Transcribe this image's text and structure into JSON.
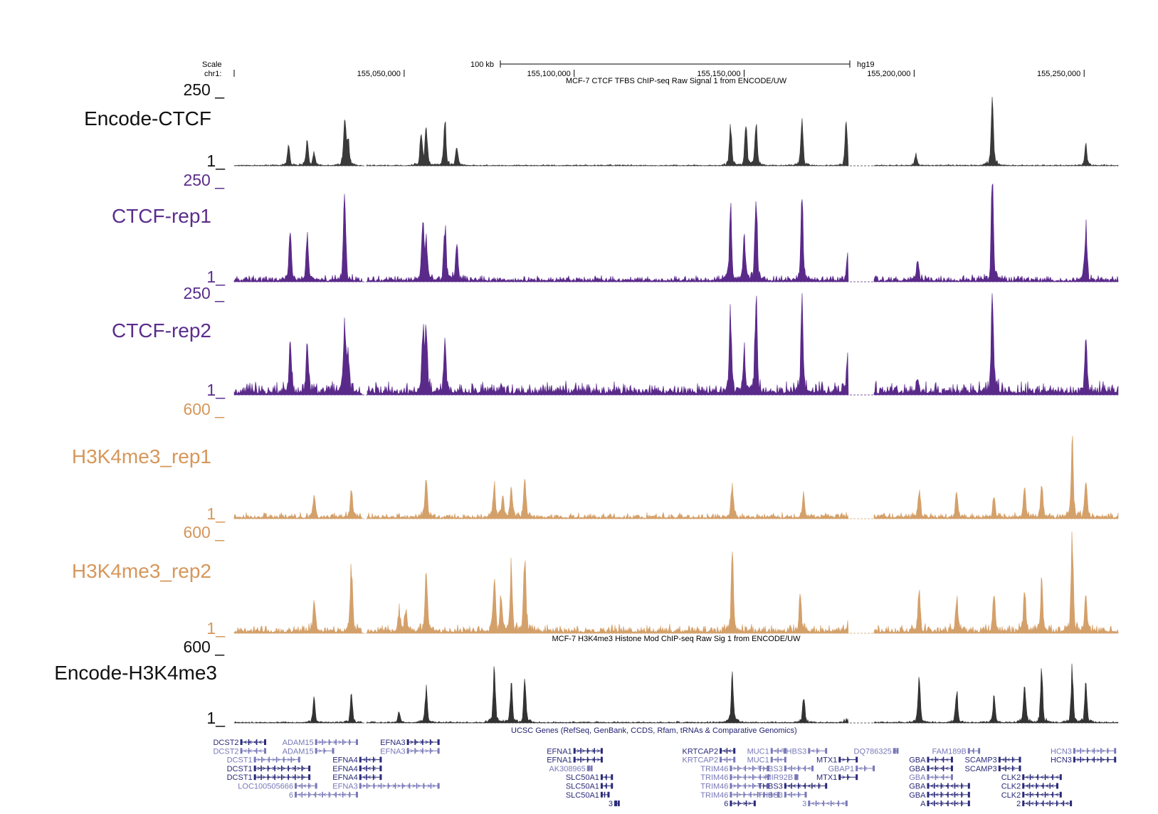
{
  "ruler": {
    "scale_label": "Scale",
    "chrom_label": "chr1:",
    "scale_bar_label": "100 kb",
    "assembly": "hg19",
    "ticks": [
      "155,050,000",
      "155,100,000",
      "155,150,000",
      "155,200,000",
      "155,250,000"
    ]
  },
  "chart_data": {
    "type": "area",
    "x_range": [
      155000000,
      155260000
    ],
    "tracks": [
      {
        "name": "Encode-CTCF",
        "subtitle": "MCF-7 CTCF TFBS ChIP-seq Raw Signal 1 from ENCODE/UW",
        "ymax_label": "250",
        "ymin_label": "1",
        "ylim": [
          1,
          250
        ],
        "color": "#3a3a3a",
        "label_color": "#111111",
        "noise": 0.008,
        "seed": 11,
        "peaks": [
          [
            155016000,
            0.3
          ],
          [
            155021500,
            0.35
          ],
          [
            155023500,
            0.18
          ],
          [
            155032500,
            0.62
          ],
          [
            155033500,
            0.38
          ],
          [
            155055000,
            0.45
          ],
          [
            155056500,
            0.58
          ],
          [
            155062000,
            0.64
          ],
          [
            155065500,
            0.25
          ],
          [
            155146000,
            0.55
          ],
          [
            155150500,
            0.58
          ],
          [
            155153500,
            0.6
          ],
          [
            155167000,
            0.62
          ],
          [
            155180000,
            0.64
          ],
          [
            155200500,
            0.16
          ],
          [
            155223000,
            0.89
          ],
          [
            155250500,
            0.28
          ]
        ]
      },
      {
        "name": "CTCF-rep1",
        "ymax_label": "250",
        "ymin_label": "1",
        "ylim": [
          1,
          250
        ],
        "color": "#5a2a8a",
        "label_color": "#5b2d8c",
        "noise": 0.03,
        "seed": 23,
        "peaks": [
          [
            155016500,
            0.55
          ],
          [
            155021500,
            0.47
          ],
          [
            155032500,
            0.84
          ],
          [
            155055500,
            0.58
          ],
          [
            155056500,
            0.4
          ],
          [
            155062000,
            0.57
          ],
          [
            155065500,
            0.38
          ],
          [
            155146000,
            0.75
          ],
          [
            155150000,
            0.47
          ],
          [
            155153500,
            0.92
          ],
          [
            155167000,
            0.83
          ],
          [
            155180500,
            0.3
          ],
          [
            155201000,
            0.2
          ],
          [
            155223000,
            1.0
          ],
          [
            155250500,
            0.56
          ]
        ]
      },
      {
        "name": "CTCF-rep2",
        "ymax_label": "250",
        "ymin_label": "1",
        "ylim": [
          1,
          250
        ],
        "color": "#5a2a8a",
        "label_color": "#5b2d8c",
        "noise": 0.06,
        "seed": 37,
        "peaks": [
          [
            155016500,
            0.54
          ],
          [
            155021500,
            0.55
          ],
          [
            155032500,
            0.73
          ],
          [
            155033500,
            0.35
          ],
          [
            155055500,
            0.55
          ],
          [
            155056500,
            0.7
          ],
          [
            155062000,
            0.45
          ],
          [
            155146000,
            0.85
          ],
          [
            155150000,
            0.4
          ],
          [
            155153500,
            0.97
          ],
          [
            155167000,
            0.98
          ],
          [
            155180500,
            0.45
          ],
          [
            155201000,
            0.15
          ],
          [
            155223000,
            1.0
          ],
          [
            155250500,
            0.56
          ]
        ]
      },
      {
        "name": "H3K4me3_rep1",
        "ymax_label": "600",
        "ymin_label": "1",
        "ylim": [
          1,
          600
        ],
        "color": "#d4a06a",
        "label_color": "#d6975a",
        "noise": 0.025,
        "seed": 41,
        "peaks": [
          [
            155023500,
            0.22
          ],
          [
            155034500,
            0.28
          ],
          [
            155056500,
            0.4
          ],
          [
            155076500,
            0.32
          ],
          [
            155079000,
            0.22
          ],
          [
            155081500,
            0.26
          ],
          [
            155085500,
            0.38
          ],
          [
            155146500,
            0.33
          ],
          [
            155167500,
            0.22
          ],
          [
            155181500,
            0.33
          ],
          [
            155201500,
            0.26
          ],
          [
            155212500,
            0.26
          ],
          [
            155223500,
            0.2
          ],
          [
            155232500,
            0.28
          ],
          [
            155237500,
            0.33
          ],
          [
            155246500,
            0.7
          ],
          [
            155250500,
            0.38
          ]
        ]
      },
      {
        "name": "H3K4me3_rep2",
        "ymax_label": "600",
        "ymin_label": "1",
        "ylim": [
          1,
          600
        ],
        "color": "#d4a06a",
        "label_color": "#d6975a",
        "noise": 0.04,
        "seed": 53,
        "peaks": [
          [
            155023500,
            0.3
          ],
          [
            155034500,
            0.7
          ],
          [
            155048500,
            0.2
          ],
          [
            155050500,
            0.22
          ],
          [
            155056500,
            0.65
          ],
          [
            155076500,
            0.6
          ],
          [
            155078500,
            0.35
          ],
          [
            155081500,
            0.65
          ],
          [
            155085500,
            0.82
          ],
          [
            155146500,
            0.8
          ],
          [
            155166500,
            0.38
          ],
          [
            155181500,
            0.67
          ],
          [
            155201500,
            0.4
          ],
          [
            155212500,
            0.36
          ],
          [
            155223500,
            0.4
          ],
          [
            155232500,
            0.43
          ],
          [
            155237500,
            0.52
          ],
          [
            155246500,
            1.0
          ],
          [
            155250500,
            0.4
          ]
        ]
      },
      {
        "name": "Encode-H3K4me3",
        "subtitle": "MCF-7 H3K4me3 Histone Mod ChIP-seq Raw Sig 1 from ENCODE/UW",
        "ymax_label": "600",
        "ymin_label": "1",
        "ylim": [
          1,
          600
        ],
        "color": "#333333",
        "label_color": "#111111",
        "noise": 0.01,
        "seed": 67,
        "peaks": [
          [
            155023500,
            0.32
          ],
          [
            155034500,
            0.4
          ],
          [
            155048500,
            0.15
          ],
          [
            155056500,
            0.5
          ],
          [
            155076500,
            0.7
          ],
          [
            155081500,
            0.5
          ],
          [
            155085500,
            0.6
          ],
          [
            155146500,
            0.7
          ],
          [
            155167500,
            0.35
          ],
          [
            155181500,
            0.95
          ],
          [
            155201500,
            0.6
          ],
          [
            155212500,
            0.45
          ],
          [
            155223500,
            0.35
          ],
          [
            155232500,
            0.55
          ],
          [
            155237500,
            0.7
          ],
          [
            155246500,
            0.75
          ],
          [
            155250500,
            0.55
          ]
        ]
      }
    ]
  },
  "genes_title": "UCSC Genes (RefSeq, GenBank, CCDS, Rfam, tRNAs & Comparative Genomics)",
  "genes": [
    {
      "name": "DCST2",
      "row": 0,
      "start": 155002000,
      "end": 155009000,
      "dir": "-",
      "color": "#2a2a7a",
      "side": "left"
    },
    {
      "name": "DCST2",
      "row": 1,
      "start": 155002000,
      "end": 155009000,
      "dir": "-",
      "color": "#7878b8",
      "side": "left"
    },
    {
      "name": "ADAM15",
      "row": 0,
      "start": 155024000,
      "end": 155036000,
      "dir": "+",
      "color": "#7878b8",
      "side": "left"
    },
    {
      "name": "ADAM15",
      "row": 1,
      "start": 155024000,
      "end": 155029000,
      "dir": "+",
      "color": "#7878b8",
      "side": "left"
    },
    {
      "name": "EFNA3",
      "row": 0,
      "start": 155051000,
      "end": 155060000,
      "dir": "+",
      "color": "#2a2a7a",
      "side": "left"
    },
    {
      "name": "EFNA3",
      "row": 1,
      "start": 155051000,
      "end": 155060000,
      "dir": "+",
      "color": "#7878b8",
      "side": "left"
    },
    {
      "name": "DCST1",
      "row": 2,
      "start": 155006000,
      "end": 155019000,
      "dir": "+",
      "color": "#7878b8",
      "side": "left"
    },
    {
      "name": "DCST1",
      "row": 3,
      "start": 155006000,
      "end": 155022000,
      "dir": "+",
      "color": "#2a2a7a",
      "side": "left"
    },
    {
      "name": "DCST1",
      "row": 4,
      "start": 155006000,
      "end": 155022000,
      "dir": "+",
      "color": "#2a2a7a",
      "side": "left"
    },
    {
      "name": "LOC100505666",
      "row": 5,
      "start": 155018000,
      "end": 155024000,
      "dir": "-",
      "color": "#7878b8",
      "side": "left"
    },
    {
      "name": "6",
      "row": 6,
      "start": 155018000,
      "end": 155036000,
      "dir": "-",
      "color": "#7878b8",
      "side": "left"
    },
    {
      "name": "EFNA4",
      "row": 2,
      "start": 155037000,
      "end": 155043000,
      "dir": "-",
      "color": "#2a2a7a",
      "side": "left"
    },
    {
      "name": "EFNA4",
      "row": 3,
      "start": 155037000,
      "end": 155043000,
      "dir": "-",
      "color": "#2a2a7a",
      "side": "left"
    },
    {
      "name": "EFNA4",
      "row": 4,
      "start": 155037000,
      "end": 155043000,
      "dir": "-",
      "color": "#2a2a7a",
      "side": "left"
    },
    {
      "name": "EFNA3",
      "row": 5,
      "start": 155037000,
      "end": 155060000,
      "dir": "+",
      "color": "#7878b8",
      "side": "left"
    },
    {
      "name": "EFNA1",
      "row": 1,
      "start": 155100000,
      "end": 155108000,
      "dir": "+",
      "color": "#2a2a7a",
      "side": "left"
    },
    {
      "name": "EFNA1",
      "row": 2,
      "start": 155100000,
      "end": 155108000,
      "dir": "+",
      "color": "#2a2a7a",
      "side": "left"
    },
    {
      "name": "AK308965",
      "row": 3,
      "start": 155104000,
      "end": 155105000,
      "dir": "+",
      "color": "#7878b8",
      "side": "left"
    },
    {
      "name": "SLC50A1",
      "row": 4,
      "start": 155108000,
      "end": 155111000,
      "dir": "-",
      "color": "#2a2a7a",
      "side": "left"
    },
    {
      "name": "SLC50A1",
      "row": 5,
      "start": 155108000,
      "end": 155111000,
      "dir": "-",
      "color": "#2a2a7a",
      "side": "left"
    },
    {
      "name": "SLC50A1",
      "row": 6,
      "start": 155108000,
      "end": 155110000,
      "dir": "-",
      "color": "#2a2a7a",
      "side": "left"
    },
    {
      "name": "3",
      "row": 7,
      "start": 155112000,
      "end": 155113000,
      "dir": "-",
      "color": "#2a2a7a",
      "side": "left"
    },
    {
      "name": "KRTCAP2",
      "row": 1,
      "start": 155143000,
      "end": 155147000,
      "dir": "-",
      "color": "#2a2a7a",
      "side": "left"
    },
    {
      "name": "KRTCAP2",
      "row": 2,
      "start": 155143000,
      "end": 155147000,
      "dir": "-",
      "color": "#7878b8",
      "side": "left"
    },
    {
      "name": "TRIM46",
      "row": 3,
      "start": 155146000,
      "end": 155157000,
      "dir": "+",
      "color": "#7878b8",
      "side": "left"
    },
    {
      "name": "TRIM46",
      "row": 4,
      "start": 155146000,
      "end": 155157000,
      "dir": "+",
      "color": "#7878b8",
      "side": "left"
    },
    {
      "name": "TRIM46",
      "row": 5,
      "start": 155146000,
      "end": 155157000,
      "dir": "+",
      "color": "#7878b8",
      "side": "left"
    },
    {
      "name": "TRIM46",
      "row": 6,
      "start": 155146000,
      "end": 155160000,
      "dir": "+",
      "color": "#7878b8",
      "side": "left"
    },
    {
      "name": "6",
      "row": 7,
      "start": 155146000,
      "end": 155153000,
      "dir": "+",
      "color": "#2a2a7a",
      "side": "left"
    },
    {
      "name": "MUC1",
      "row": 1,
      "start": 155158000,
      "end": 155162000,
      "dir": "-",
      "color": "#7878b8",
      "side": "left"
    },
    {
      "name": "MUC1",
      "row": 2,
      "start": 155158000,
      "end": 155162000,
      "dir": "-",
      "color": "#7878b8",
      "side": "left"
    },
    {
      "name": "MIR92B",
      "row": 4,
      "start": 155165000,
      "end": 155165500,
      "dir": "+",
      "color": "#7878b8",
      "side": "left"
    },
    {
      "name": "THBS3",
      "row": 1,
      "start": 155169000,
      "end": 155174000,
      "dir": "-",
      "color": "#7878b8",
      "side": "left"
    },
    {
      "name": "THBS3",
      "row": 3,
      "start": 155162000,
      "end": 155170000,
      "dir": "-",
      "color": "#7878b8",
      "side": "left"
    },
    {
      "name": "THBS3",
      "row": 5,
      "start": 155162000,
      "end": 155174000,
      "dir": "-",
      "color": "#2a2a7a",
      "side": "left"
    },
    {
      "name": "THBS3",
      "row": 6,
      "start": 155162000,
      "end": 155168000,
      "dir": "-",
      "color": "#7878b8",
      "side": "left"
    },
    {
      "name": "3",
      "row": 7,
      "start": 155169000,
      "end": 155180000,
      "dir": "-",
      "color": "#7878b8",
      "side": "left"
    },
    {
      "name": "MTX1",
      "row": 2,
      "start": 155178000,
      "end": 155183000,
      "dir": "+",
      "color": "#2a2a7a",
      "side": "left"
    },
    {
      "name": "MTX1",
      "row": 4,
      "start": 155178000,
      "end": 155183000,
      "dir": "+",
      "color": "#2a2a7a",
      "side": "left"
    },
    {
      "name": "GBAP1",
      "row": 3,
      "start": 155183000,
      "end": 155188000,
      "dir": "-",
      "color": "#7878b8",
      "side": "left"
    },
    {
      "name": "DQ786325",
      "row": 1,
      "start": 155194000,
      "end": 155195000,
      "dir": "+",
      "color": "#7878b8",
      "side": "left"
    },
    {
      "name": "GBA",
      "row": 2,
      "start": 155204000,
      "end": 155211000,
      "dir": "-",
      "color": "#2a2a7a",
      "side": "left"
    },
    {
      "name": "GBA",
      "row": 3,
      "start": 155204000,
      "end": 155211000,
      "dir": "-",
      "color": "#2a2a7a",
      "side": "left"
    },
    {
      "name": "GBA",
      "row": 4,
      "start": 155204000,
      "end": 155211000,
      "dir": "-",
      "color": "#7878b8",
      "side": "left"
    },
    {
      "name": "GBA",
      "row": 5,
      "start": 155204000,
      "end": 155216000,
      "dir": "-",
      "color": "#2a2a7a",
      "side": "left"
    },
    {
      "name": "GBA",
      "row": 6,
      "start": 155204000,
      "end": 155216000,
      "dir": "-",
      "color": "#2a2a7a",
      "side": "left"
    },
    {
      "name": "A",
      "row": 7,
      "start": 155204000,
      "end": 155216000,
      "dir": "-",
      "color": "#2a2a7a",
      "side": "left"
    },
    {
      "name": "FAM189B",
      "row": 1,
      "start": 155216000,
      "end": 155219000,
      "dir": "-",
      "color": "#7878b8",
      "side": "left"
    },
    {
      "name": "SCAMP3",
      "row": 2,
      "start": 155225000,
      "end": 155231000,
      "dir": "-",
      "color": "#2a2a7a",
      "side": "left"
    },
    {
      "name": "SCAMP3",
      "row": 3,
      "start": 155225000,
      "end": 155231000,
      "dir": "-",
      "color": "#2a2a7a",
      "side": "left"
    },
    {
      "name": "CLK2",
      "row": 4,
      "start": 155232000,
      "end": 155243000,
      "dir": "-",
      "color": "#2a2a7a",
      "side": "left"
    },
    {
      "name": "CLK2",
      "row": 5,
      "start": 155232000,
      "end": 155242000,
      "dir": "-",
      "color": "#2a2a7a",
      "side": "left"
    },
    {
      "name": "CLK2",
      "row": 6,
      "start": 155232000,
      "end": 155243000,
      "dir": "-",
      "color": "#2a2a7a",
      "side": "left"
    },
    {
      "name": "2",
      "row": 7,
      "start": 155232000,
      "end": 155246000,
      "dir": "-",
      "color": "#2a2a7a",
      "side": "left"
    },
    {
      "name": "HCN3",
      "row": 1,
      "start": 155247000,
      "end": 155259000,
      "dir": "+",
      "color": "#7878b8",
      "side": "left"
    },
    {
      "name": "HCN3",
      "row": 2,
      "start": 155247000,
      "end": 155259000,
      "dir": "+",
      "color": "#2a2a7a",
      "side": "left"
    }
  ]
}
